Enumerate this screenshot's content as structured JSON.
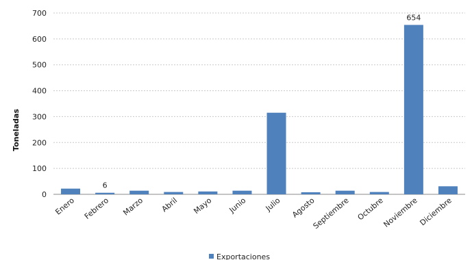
{
  "chart_data": {
    "type": "bar",
    "categories": [
      "Enero",
      "Febrero",
      "Marzo",
      "Abril",
      "Mayo",
      "Junio",
      "Julio",
      "Agosto",
      "Septiembre",
      "Octubre",
      "Noviembre",
      "Diciembre"
    ],
    "series": [
      {
        "name": "Exportaciones",
        "color": "#4f81bd",
        "values": [
          22,
          6,
          14,
          9,
          11,
          14,
          315,
          8,
          14,
          9,
          654,
          31
        ]
      }
    ],
    "data_labels": [
      {
        "category": "Febrero",
        "text": "6"
      },
      {
        "category": "Noviembre",
        "text": "654"
      }
    ],
    "ylabel": "Toneladas",
    "xlabel": "",
    "ylim": [
      0,
      700
    ],
    "yticks": [
      0,
      100,
      200,
      300,
      400,
      500,
      600,
      700
    ],
    "grid": true,
    "legend": "bottom"
  }
}
